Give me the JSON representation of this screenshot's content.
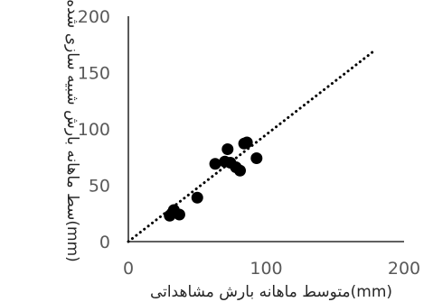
{
  "chart_data": {
    "type": "scatter",
    "title": "",
    "xlabel": "متوسط ماهانه بارش مشاهداتی(mm)",
    "ylabel": "سط ماهانه بارش شبیه سازی شده(mm)",
    "xlim": [
      0,
      200
    ],
    "ylim": [
      0,
      200
    ],
    "xticks": [
      "0",
      "100",
      "200"
    ],
    "yticks": [
      "0",
      "50",
      "100",
      "150",
      "200"
    ],
    "grid": false,
    "legend": "none",
    "points": [
      {
        "x": 30,
        "y": 23
      },
      {
        "x": 33,
        "y": 28
      },
      {
        "x": 37,
        "y": 24
      },
      {
        "x": 50,
        "y": 39
      },
      {
        "x": 63,
        "y": 69
      },
      {
        "x": 70,
        "y": 71
      },
      {
        "x": 72,
        "y": 82
      },
      {
        "x": 74,
        "y": 70
      },
      {
        "x": 78,
        "y": 66
      },
      {
        "x": 81,
        "y": 63
      },
      {
        "x": 84,
        "y": 87
      },
      {
        "x": 86,
        "y": 88
      },
      {
        "x": 93,
        "y": 74
      }
    ],
    "trendline": {
      "style": "dotted",
      "x": [
        0,
        178
      ],
      "y": [
        0,
        169
      ]
    },
    "colors": {
      "points": "#000000",
      "axis": "#000000",
      "trendline": "#000000"
    }
  }
}
